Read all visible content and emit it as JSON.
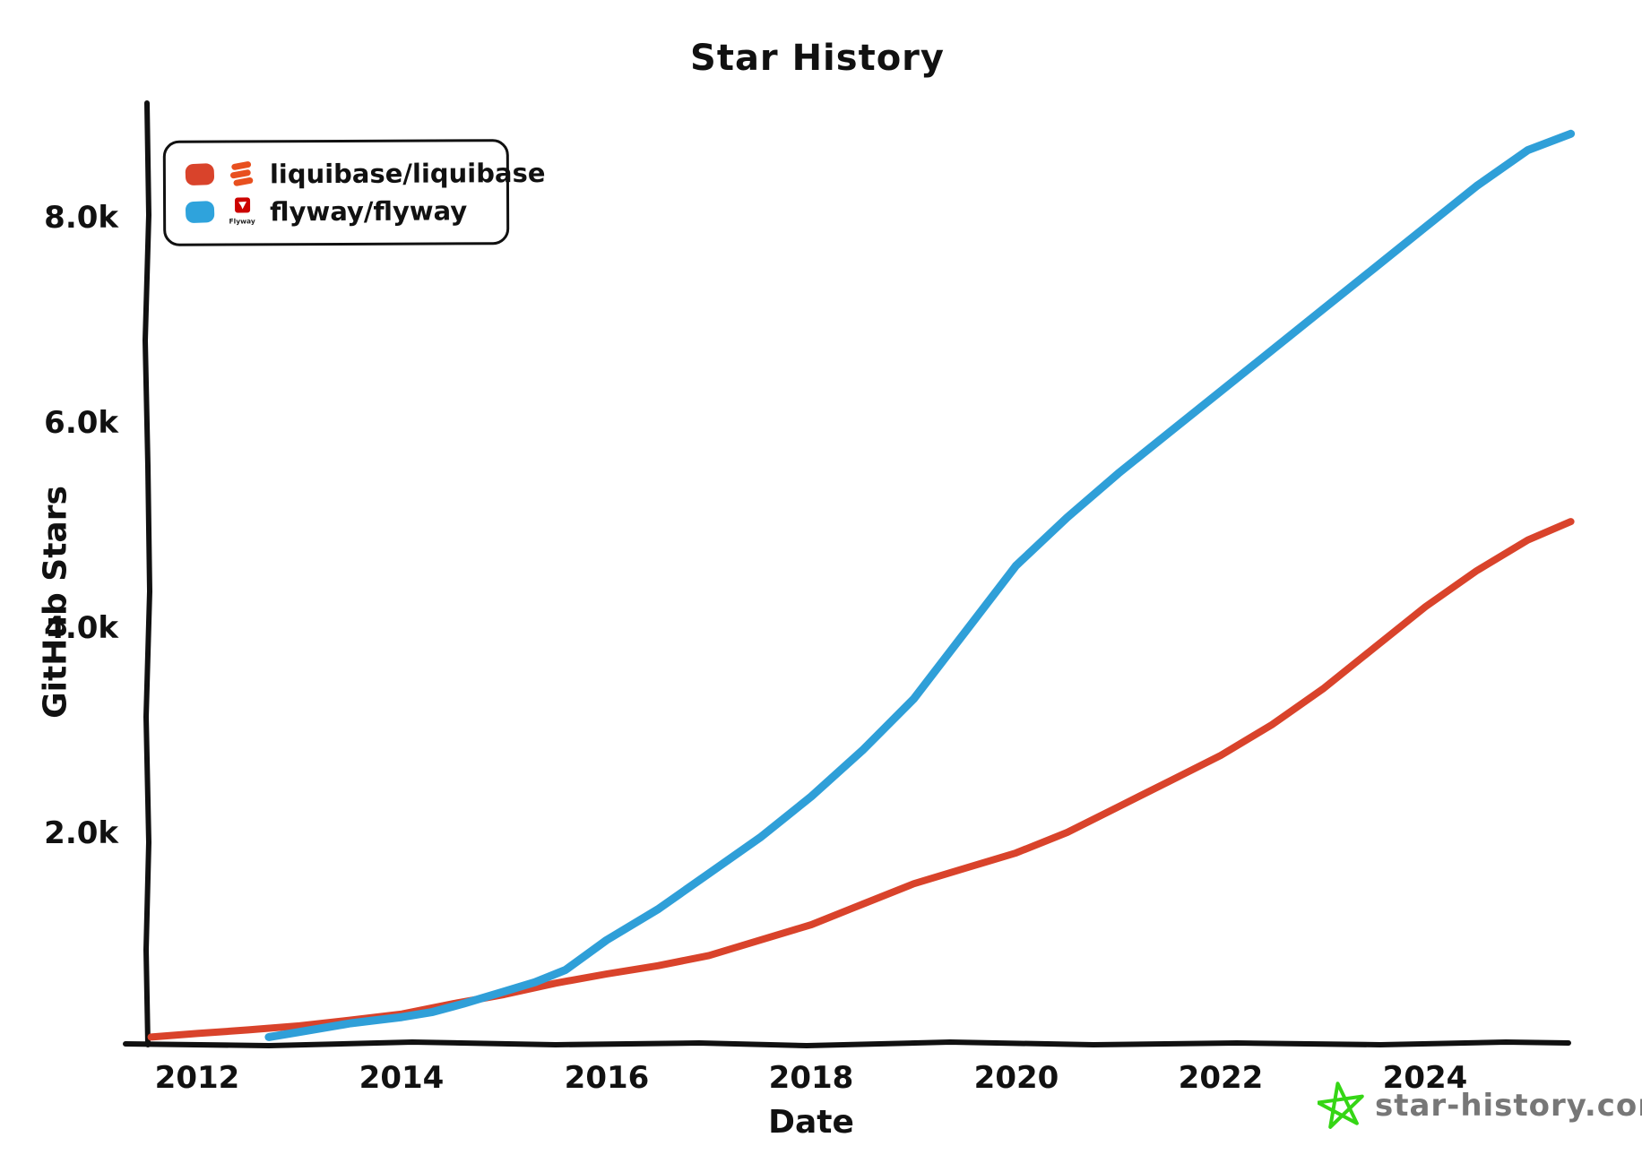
{
  "title": "Star History",
  "legend": {
    "entries": [
      {
        "label": "liquibase/liquibase",
        "color": "#D9432B",
        "logo": "liquibase-logo-icon"
      },
      {
        "label": "flyway/flyway",
        "color": "#2FA3DC",
        "logo": "flyway-logo-icon"
      }
    ],
    "flyway_logo_text": "Flyway"
  },
  "watermark": {
    "text": "star-history.com",
    "star_color": "#35D615",
    "text_color": "#777777"
  },
  "chart_data": {
    "type": "line",
    "title": "Star History",
    "xlabel": "Date",
    "ylabel": "GitHub Stars",
    "xlim": [
      2011.3,
      2025.6
    ],
    "ylim": [
      0,
      9150
    ],
    "grid": false,
    "legend_position": "top-left",
    "x_ticks": [
      {
        "value": 2012,
        "label": "2012"
      },
      {
        "value": 2014,
        "label": "2014"
      },
      {
        "value": 2016,
        "label": "2016"
      },
      {
        "value": 2018,
        "label": "2018"
      },
      {
        "value": 2020,
        "label": "2020"
      },
      {
        "value": 2022,
        "label": "2022"
      },
      {
        "value": 2024,
        "label": "2024"
      }
    ],
    "y_ticks": [
      {
        "value": 2000,
        "label": "2.0k"
      },
      {
        "value": 4000,
        "label": "4.0k"
      },
      {
        "value": 6000,
        "label": "6.0k"
      },
      {
        "value": 8000,
        "label": "8.0k"
      }
    ],
    "series": [
      {
        "name": "liquibase/liquibase",
        "color": "#D9432B",
        "stroke_width": 8,
        "points": [
          [
            2011.55,
            5
          ],
          [
            2012,
            40
          ],
          [
            2012.5,
            75
          ],
          [
            2013,
            115
          ],
          [
            2013.5,
            170
          ],
          [
            2014,
            230
          ],
          [
            2014.5,
            330
          ],
          [
            2015,
            420
          ],
          [
            2015.5,
            530
          ],
          [
            2016,
            620
          ],
          [
            2016.5,
            700
          ],
          [
            2017,
            800
          ],
          [
            2017.5,
            950
          ],
          [
            2018,
            1100
          ],
          [
            2018.5,
            1300
          ],
          [
            2019,
            1500
          ],
          [
            2019.5,
            1650
          ],
          [
            2020,
            1800
          ],
          [
            2020.5,
            2000
          ],
          [
            2021,
            2250
          ],
          [
            2021.5,
            2500
          ],
          [
            2022,
            2750
          ],
          [
            2022.5,
            3050
          ],
          [
            2023,
            3400
          ],
          [
            2023.5,
            3800
          ],
          [
            2024,
            4200
          ],
          [
            2024.5,
            4550
          ],
          [
            2025,
            4850
          ],
          [
            2025.42,
            5030
          ]
        ]
      },
      {
        "name": "flyway/flyway",
        "color": "#2F9FD8",
        "stroke_width": 9,
        "points": [
          [
            2012.7,
            5
          ],
          [
            2013,
            55
          ],
          [
            2013.5,
            140
          ],
          [
            2014,
            200
          ],
          [
            2014.3,
            250
          ],
          [
            2014.6,
            330
          ],
          [
            2015,
            450
          ],
          [
            2015.3,
            540
          ],
          [
            2015.6,
            660
          ],
          [
            2016,
            950
          ],
          [
            2016.5,
            1250
          ],
          [
            2017,
            1600
          ],
          [
            2017.5,
            1950
          ],
          [
            2018,
            2350
          ],
          [
            2018.5,
            2800
          ],
          [
            2019,
            3300
          ],
          [
            2019.5,
            3950
          ],
          [
            2020,
            4600
          ],
          [
            2020.5,
            5070
          ],
          [
            2021,
            5500
          ],
          [
            2021.5,
            5900
          ],
          [
            2022,
            6300
          ],
          [
            2022.5,
            6700
          ],
          [
            2023,
            7100
          ],
          [
            2023.5,
            7500
          ],
          [
            2024,
            7900
          ],
          [
            2024.5,
            8300
          ],
          [
            2025,
            8650
          ],
          [
            2025.42,
            8810
          ]
        ]
      }
    ]
  }
}
